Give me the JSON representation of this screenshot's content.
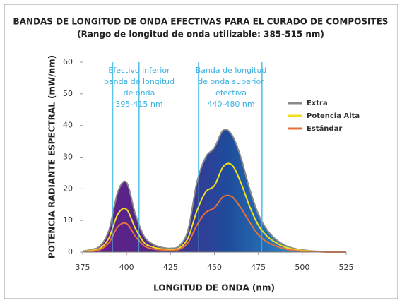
{
  "chart_data": {
    "type": "line",
    "title": "BANDAS DE LONGITUD DE ONDA EFECTIVAS PARA EL CURADO DE COMPOSITES",
    "subtitle": "(Rango de longitud de onda utilizable: 385-515 nm)",
    "x_label": "LONGITUD DE ONDA (nm)",
    "y_label": "POTENCIA RADIANTE ESPECTRAL (mW/nm)",
    "x": [
      375,
      380,
      385,
      390,
      395,
      400,
      405,
      410,
      415,
      420,
      425,
      430,
      435,
      440,
      445,
      450,
      455,
      460,
      465,
      470,
      475,
      480,
      485,
      490,
      495,
      500,
      505,
      510,
      515,
      520,
      525
    ],
    "series": [
      {
        "name": "Extra",
        "color": "#8a8a8a",
        "fill": true,
        "values": [
          0.3,
          0.8,
          2,
          7,
          19,
          22,
          12,
          5,
          2.5,
          1.5,
          1.2,
          2,
          7,
          22,
          30,
          33,
          38.5,
          37,
          30,
          20,
          12,
          7,
          4,
          2.2,
          1.2,
          0.7,
          0.4,
          0.2,
          0.1,
          0,
          0
        ]
      },
      {
        "name": "Potencia Alta",
        "color": "#f2df1f",
        "values": [
          0.2,
          0.5,
          1.2,
          4.5,
          12,
          13.5,
          7.5,
          3,
          1.6,
          1,
          0.8,
          1.3,
          4.5,
          13,
          19,
          21,
          27,
          27.5,
          22,
          14.5,
          8.5,
          5,
          3,
          1.6,
          0.9,
          0.5,
          0.3,
          0.15,
          0.1,
          0,
          0
        ]
      },
      {
        "name": "Estándar",
        "color": "#e8703a",
        "values": [
          0.1,
          0.3,
          0.8,
          3,
          8,
          9,
          5,
          2,
          1,
          0.7,
          0.5,
          0.9,
          3,
          8.5,
          12.5,
          14,
          17.5,
          17.5,
          14,
          9.5,
          5.5,
          3.2,
          1.9,
          1,
          0.6,
          0.3,
          0.2,
          0.1,
          0,
          0,
          0
        ]
      }
    ],
    "band_lines": [
      392,
      407,
      441,
      477
    ],
    "band_line_color": "#5bc4ea",
    "annotations": [
      {
        "lines": [
          "Efectivo inferior",
          "banda de longitud",
          "de onda",
          "395-415 nm"
        ]
      },
      {
        "lines": [
          "Banda de longitud",
          "de onda superior",
          "efectiva",
          "440-480 nm"
        ]
      }
    ],
    "xlim": [
      375,
      525
    ],
    "xticks": [
      375,
      400,
      425,
      450,
      475,
      500,
      525
    ],
    "ylim": [
      0,
      60
    ],
    "yticks": [
      0,
      10,
      20,
      30,
      40,
      50,
      60
    ]
  }
}
